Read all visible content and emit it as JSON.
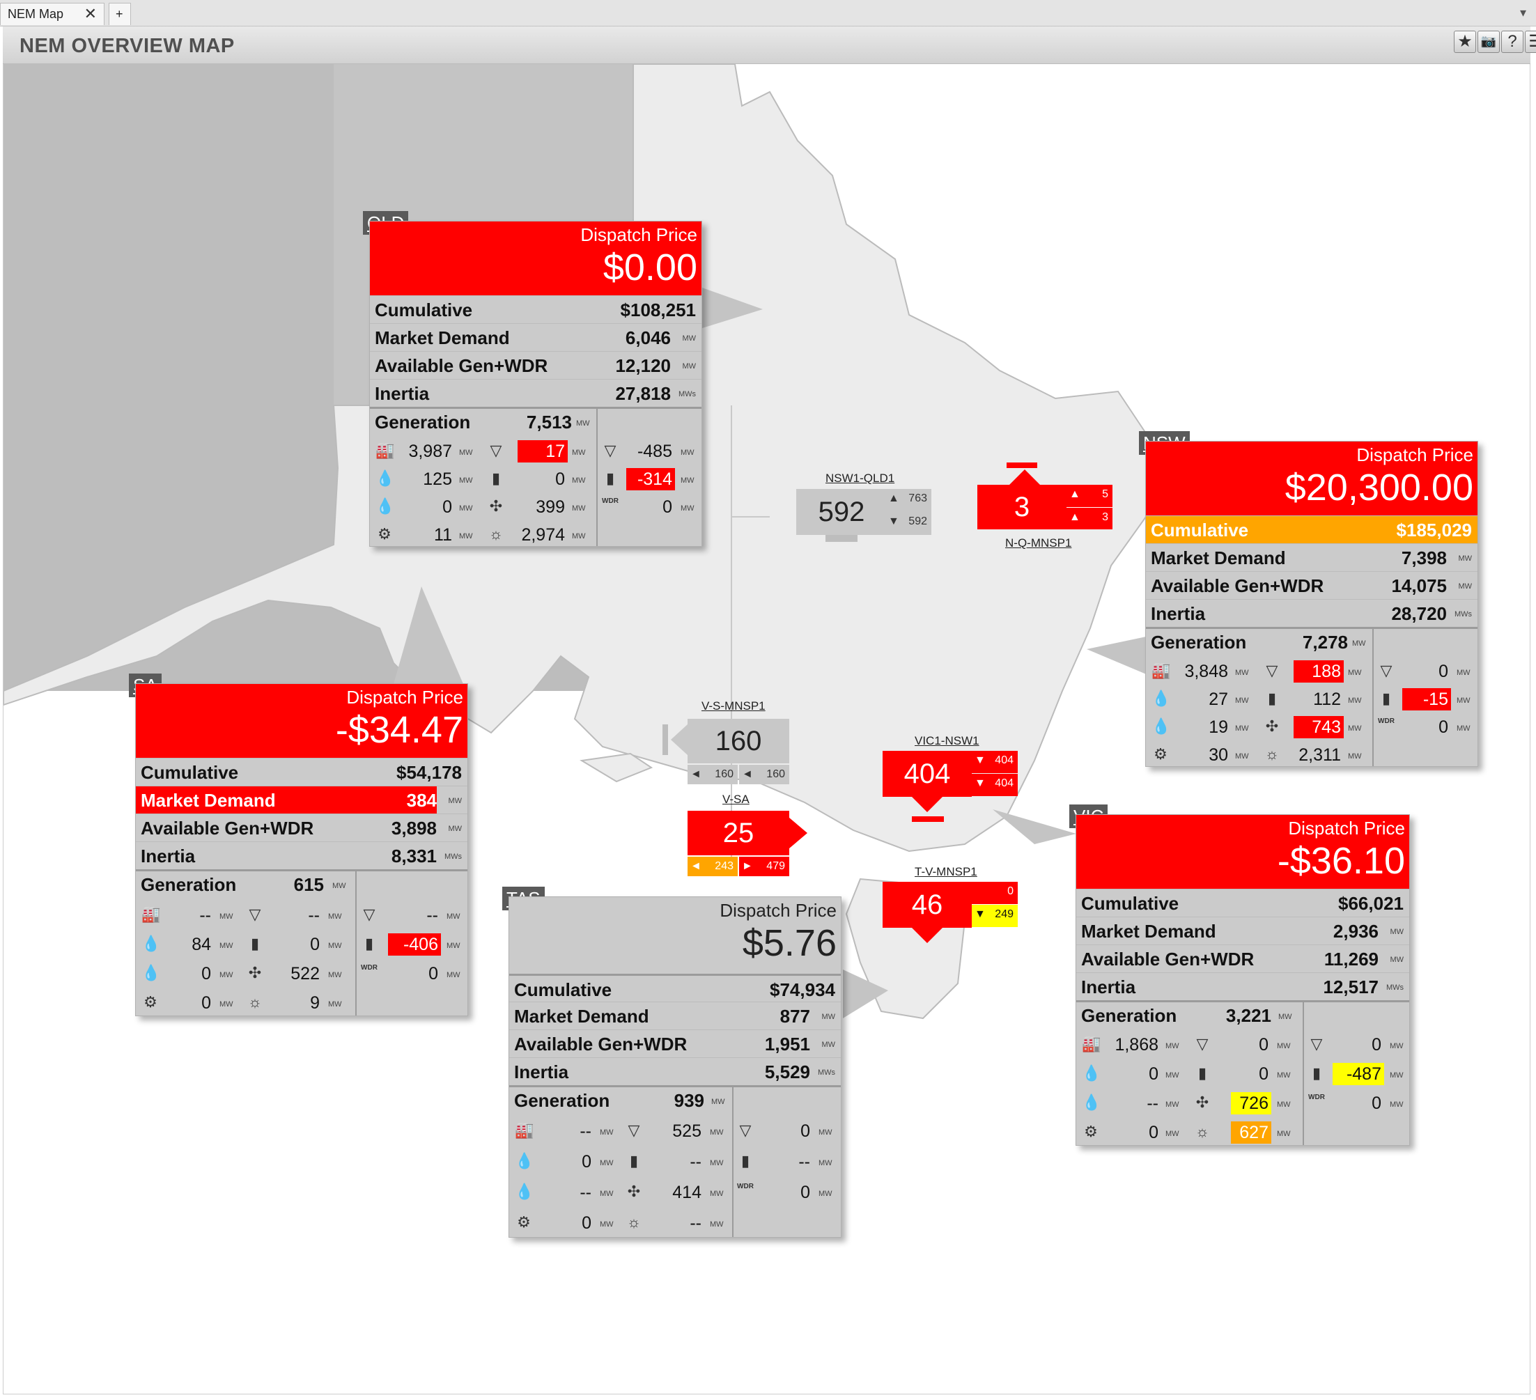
{
  "tabs": [
    {
      "label": "NEM Map"
    },
    {
      "label": "+"
    }
  ],
  "title": "NEM OVERVIEW MAP",
  "toolbar": {
    "star": "★",
    "camera": "📷",
    "help": "?",
    "chat": "☰"
  },
  "units": {
    "mw": "MW",
    "mws": "MWs"
  },
  "labels": {
    "dispatch": "Dispatch Price",
    "cumulative": "Cumulative",
    "demand": "Market Demand",
    "avail": "Available Gen+WDR",
    "inertia": "Inertia",
    "generation": "Generation",
    "wdr": "WDR"
  },
  "regions": {
    "qld": {
      "tag": "QLD",
      "price": "$0.00",
      "cumulative": "$108,251",
      "demand": "6,046",
      "avail": "12,120",
      "inertia": "27,818",
      "generation": "7,513",
      "coal": "3,987",
      "gas": "17",
      "batt_net": "-485",
      "hydro": "125",
      "batt": "0",
      "batt_load": "-314",
      "liquid": "0",
      "wind": "399",
      "wdr": "0",
      "other": "11",
      "solar": "2,974"
    },
    "nsw": {
      "tag": "NSW",
      "price": "$20,300.00",
      "cumulative": "$185,029",
      "demand": "7,398",
      "avail": "14,075",
      "inertia": "28,720",
      "generation": "7,278",
      "coal": "3,848",
      "gas": "188",
      "batt_net": "0",
      "hydro": "27",
      "batt": "112",
      "batt_load": "-15",
      "liquid": "19",
      "wind": "743",
      "wdr": "0",
      "other": "30",
      "solar": "2,311"
    },
    "sa": {
      "tag": "SA",
      "price": "-$34.47",
      "cumulative": "$54,178",
      "demand": "384",
      "avail": "3,898",
      "inertia": "8,331",
      "generation": "615",
      "coal": "--",
      "gas": "--",
      "batt_net": "--",
      "hydro": "84",
      "batt": "0",
      "batt_load": "-406",
      "liquid": "0",
      "wind": "522",
      "wdr": "0",
      "other": "0",
      "solar": "9"
    },
    "tas": {
      "tag": "TAS",
      "price": "$5.76",
      "cumulative": "$74,934",
      "demand": "877",
      "avail": "1,951",
      "inertia": "5,529",
      "generation": "939",
      "coal": "--",
      "gas": "525",
      "batt_net": "0",
      "hydro": "0",
      "batt": "--",
      "batt_load": "--",
      "liquid": "--",
      "wind": "414",
      "wdr": "0",
      "other": "0",
      "solar": "--"
    },
    "vic": {
      "tag": "VIC",
      "price": "-$36.10",
      "cumulative": "$66,021",
      "demand": "2,936",
      "avail": "11,269",
      "inertia": "12,517",
      "generation": "3,221",
      "coal": "1,868",
      "gas": "0",
      "batt_net": "0",
      "hydro": "0",
      "batt": "0",
      "batt_load": "-487",
      "liquid": "--",
      "wind": "726",
      "wdr": "0",
      "other": "0",
      "solar": "627"
    }
  },
  "interconnectors": {
    "nsw1_qld1": {
      "name": "NSW1-QLD1",
      "value": "592",
      "up": "763",
      "down": "592"
    },
    "nqmnsp1": {
      "name": "N-Q-MNSP1",
      "value": "3",
      "up": "5",
      "down": "3"
    },
    "vsmnsp1": {
      "name": "V-S-MNSP1",
      "value": "160",
      "left1": "160",
      "left2": "160"
    },
    "vic1_nsw1": {
      "name": "VIC1-NSW1",
      "value": "404",
      "a": "404",
      "b": "404"
    },
    "vsa": {
      "name": "V-SA",
      "value": "25",
      "left": "243",
      "right": "479"
    },
    "tvmnsp1": {
      "name": "T-V-MNSP1",
      "value": "46",
      "a": "0",
      "b": "249"
    }
  },
  "colors": {
    "price_red": "#ff0000",
    "warn_orange": "#ffa500",
    "warn_yellow": "#ffff00",
    "panel_grey": "#cbcbcb"
  }
}
